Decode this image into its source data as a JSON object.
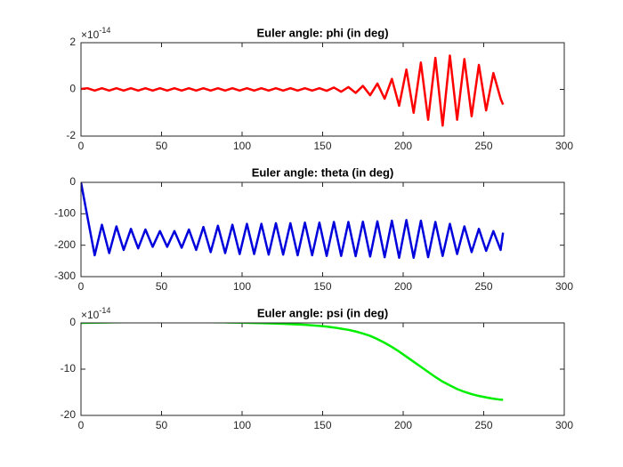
{
  "chart_data": [
    {
      "type": "line",
      "title": "Euler angle: phi (in deg)",
      "color": "#ff0000",
      "y_exponent": {
        "base": "×10",
        "power": "-14"
      },
      "x": [
        0,
        4,
        8.5,
        13,
        17.5,
        22,
        26.5,
        31,
        35.5,
        40,
        44.5,
        49,
        53.5,
        58,
        62.5,
        67,
        71.5,
        76,
        80.5,
        85,
        89.5,
        94,
        98.5,
        103,
        107.5,
        112,
        116.5,
        121,
        125.5,
        130,
        134.5,
        139,
        143.5,
        148,
        152.5,
        157,
        161.5,
        166,
        170.5,
        175,
        179.5,
        184,
        188.5,
        193,
        197.5,
        202,
        206.5,
        211,
        215.5,
        220,
        224.5,
        229,
        233.5,
        238,
        242.5,
        247,
        251.5,
        256,
        260.5,
        262
      ],
      "values": [
        0.02,
        0.05,
        -0.05,
        0.05,
        -0.05,
        0.05,
        -0.05,
        0.05,
        -0.05,
        0.05,
        -0.05,
        0.05,
        -0.05,
        0.05,
        -0.05,
        0.05,
        -0.05,
        0.05,
        -0.05,
        0.05,
        -0.05,
        0.05,
        -0.05,
        0.05,
        -0.05,
        0.05,
        -0.05,
        0.05,
        -0.05,
        0.05,
        -0.05,
        0.05,
        -0.05,
        0.05,
        -0.06,
        0.08,
        -0.1,
        0.1,
        -0.15,
        0.15,
        -0.25,
        0.25,
        -0.4,
        0.45,
        -0.7,
        0.85,
        -1.0,
        1.15,
        -1.3,
        1.35,
        -1.55,
        1.45,
        -1.3,
        1.3,
        -1.15,
        1.05,
        -0.9,
        0.7,
        -0.4,
        -0.65
      ],
      "xlim": [
        0,
        300
      ],
      "xticks": [
        0,
        50,
        100,
        150,
        200,
        250,
        300
      ],
      "ylim": [
        -2,
        2
      ],
      "yticks": [
        -2,
        0,
        2
      ]
    },
    {
      "type": "line",
      "title": "Euler angle: theta (in deg)",
      "color": "#0000dd",
      "x": [
        0,
        4,
        8.5,
        13,
        17.5,
        22,
        26.5,
        31,
        35.5,
        40,
        44.5,
        49,
        53.5,
        58,
        62.5,
        67,
        71.5,
        76,
        80.5,
        85,
        89.5,
        94,
        98.5,
        103,
        107.5,
        112,
        116.5,
        121,
        125.5,
        130,
        134.5,
        139,
        143.5,
        148,
        152.5,
        157,
        161.5,
        166,
        170.5,
        175,
        179.5,
        184,
        188.5,
        193,
        197.5,
        202,
        206.5,
        211,
        215.5,
        220,
        224.5,
        229,
        233.5,
        238,
        242.5,
        247,
        251.5,
        256,
        260.5,
        262
      ],
      "values": [
        0,
        -110,
        -232,
        -135,
        -225,
        -140,
        -215,
        -148,
        -210,
        -150,
        -205,
        -155,
        -205,
        -155,
        -208,
        -150,
        -215,
        -142,
        -222,
        -138,
        -225,
        -135,
        -228,
        -132,
        -228,
        -132,
        -230,
        -130,
        -230,
        -130,
        -232,
        -128,
        -232,
        -128,
        -234,
        -126,
        -234,
        -126,
        -235,
        -125,
        -236,
        -124,
        -238,
        -122,
        -240,
        -120,
        -240,
        -122,
        -238,
        -126,
        -234,
        -132,
        -228,
        -140,
        -222,
        -148,
        -218,
        -155,
        -215,
        -160
      ],
      "xlim": [
        0,
        300
      ],
      "xticks": [
        0,
        50,
        100,
        150,
        200,
        250,
        300
      ],
      "ylim": [
        -300,
        0
      ],
      "yticks": [
        -300,
        -200,
        -100,
        0
      ]
    },
    {
      "type": "line",
      "title": "Euler angle: psi (in deg)",
      "color": "#00ee00",
      "y_exponent": {
        "base": "×10",
        "power": "-14"
      },
      "x": [
        0,
        4,
        8.5,
        13,
        17.5,
        22,
        26.5,
        31,
        35.5,
        40,
        44.5,
        49,
        53.5,
        58,
        62.5,
        67,
        71.5,
        76,
        80.5,
        85,
        89.5,
        94,
        98.5,
        103,
        107.5,
        112,
        116.5,
        121,
        125.5,
        130,
        134.5,
        139,
        143.5,
        148,
        152.5,
        157,
        161.5,
        166,
        170.5,
        175,
        179.5,
        184,
        188.5,
        193,
        197.5,
        202,
        206.5,
        211,
        215.5,
        220,
        224.5,
        229,
        233.5,
        238,
        242.5,
        247,
        251.5,
        256,
        260.5,
        262
      ],
      "values": [
        0,
        0.02,
        0.05,
        0.08,
        0.1,
        0.13,
        0.15,
        0.17,
        0.18,
        0.19,
        0.2,
        0.2,
        0.2,
        0.2,
        0.2,
        0.19,
        0.18,
        0.17,
        0.15,
        0.13,
        0.11,
        0.08,
        0.05,
        0.02,
        -0.02,
        -0.06,
        -0.1,
        -0.15,
        -0.2,
        -0.26,
        -0.33,
        -0.42,
        -0.52,
        -0.65,
        -0.8,
        -1.0,
        -1.25,
        -1.5,
        -1.85,
        -2.3,
        -2.8,
        -3.5,
        -4.3,
        -5.2,
        -6.2,
        -7.3,
        -8.4,
        -9.5,
        -10.6,
        -11.7,
        -12.7,
        -13.5,
        -14.3,
        -14.9,
        -15.4,
        -15.8,
        -16.1,
        -16.4,
        -16.6,
        -16.6
      ],
      "xlim": [
        0,
        300
      ],
      "xticks": [
        0,
        50,
        100,
        150,
        200,
        250,
        300
      ],
      "ylim": [
        -20,
        0
      ],
      "yticks": [
        -20,
        -10,
        0
      ]
    }
  ]
}
